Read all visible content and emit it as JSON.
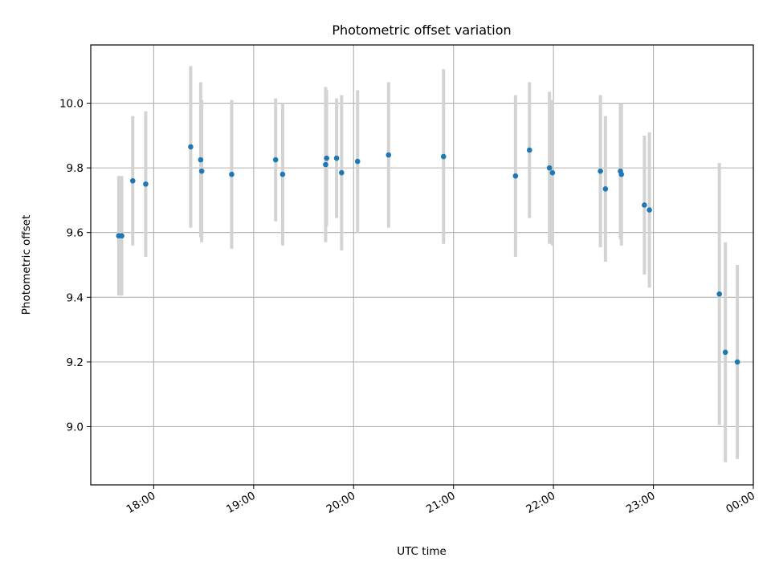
{
  "chart_data": {
    "type": "scatter",
    "title": "Photometric offset variation",
    "xlabel": "UTC time",
    "ylabel": "Photometric offset",
    "grid": true,
    "xlim_hours": [
      17.37,
      24.0
    ],
    "ylim": [
      8.82,
      10.18
    ],
    "x_ticks": [
      {
        "hour": 18,
        "label": "18:00"
      },
      {
        "hour": 19,
        "label": "19:00"
      },
      {
        "hour": 20,
        "label": "20:00"
      },
      {
        "hour": 21,
        "label": "21:00"
      },
      {
        "hour": 22,
        "label": "22:00"
      },
      {
        "hour": 23,
        "label": "23:00"
      },
      {
        "hour": 24,
        "label": "00:00"
      }
    ],
    "y_ticks": [
      {
        "value": 9.0,
        "label": "9.0"
      },
      {
        "value": 9.2,
        "label": "9.2"
      },
      {
        "value": 9.4,
        "label": "9.4"
      },
      {
        "value": 9.6,
        "label": "9.6"
      },
      {
        "value": 9.8,
        "label": "9.8"
      },
      {
        "value": 10.0,
        "label": "10.0"
      }
    ],
    "marker_color": "#1f77b4",
    "errorbar_color": "#d3d3d3",
    "points": [
      {
        "x": 17.65,
        "y": 9.59,
        "err": 0.185
      },
      {
        "x": 17.68,
        "y": 9.59,
        "err": 0.185
      },
      {
        "x": 17.79,
        "y": 9.76,
        "err": 0.2
      },
      {
        "x": 17.92,
        "y": 9.75,
        "err": 0.225
      },
      {
        "x": 18.37,
        "y": 9.865,
        "err": 0.25
      },
      {
        "x": 18.47,
        "y": 9.825,
        "err": 0.24
      },
      {
        "x": 18.48,
        "y": 9.79,
        "err": 0.22
      },
      {
        "x": 18.78,
        "y": 9.78,
        "err": 0.23
      },
      {
        "x": 19.22,
        "y": 9.825,
        "err": 0.19
      },
      {
        "x": 19.29,
        "y": 9.78,
        "err": 0.22
      },
      {
        "x": 19.72,
        "y": 9.81,
        "err": 0.24
      },
      {
        "x": 19.73,
        "y": 9.83,
        "err": 0.21
      },
      {
        "x": 19.83,
        "y": 9.83,
        "err": 0.185
      },
      {
        "x": 19.88,
        "y": 9.785,
        "err": 0.24
      },
      {
        "x": 20.04,
        "y": 9.82,
        "err": 0.22
      },
      {
        "x": 20.35,
        "y": 9.84,
        "err": 0.225
      },
      {
        "x": 20.9,
        "y": 9.835,
        "err": 0.27
      },
      {
        "x": 21.62,
        "y": 9.775,
        "err": 0.25
      },
      {
        "x": 21.76,
        "y": 9.855,
        "err": 0.21
      },
      {
        "x": 21.96,
        "y": 9.8,
        "err": 0.235
      },
      {
        "x": 21.99,
        "y": 9.785,
        "err": 0.225
      },
      {
        "x": 22.47,
        "y": 9.79,
        "err": 0.235
      },
      {
        "x": 22.52,
        "y": 9.735,
        "err": 0.225
      },
      {
        "x": 22.67,
        "y": 9.79,
        "err": 0.21
      },
      {
        "x": 22.68,
        "y": 9.78,
        "err": 0.22
      },
      {
        "x": 22.91,
        "y": 9.685,
        "err": 0.215
      },
      {
        "x": 22.96,
        "y": 9.67,
        "err": 0.24
      },
      {
        "x": 23.66,
        "y": 9.41,
        "err": 0.405
      },
      {
        "x": 23.72,
        "y": 9.23,
        "err": 0.34
      },
      {
        "x": 23.84,
        "y": 9.2,
        "err": 0.3
      }
    ]
  }
}
